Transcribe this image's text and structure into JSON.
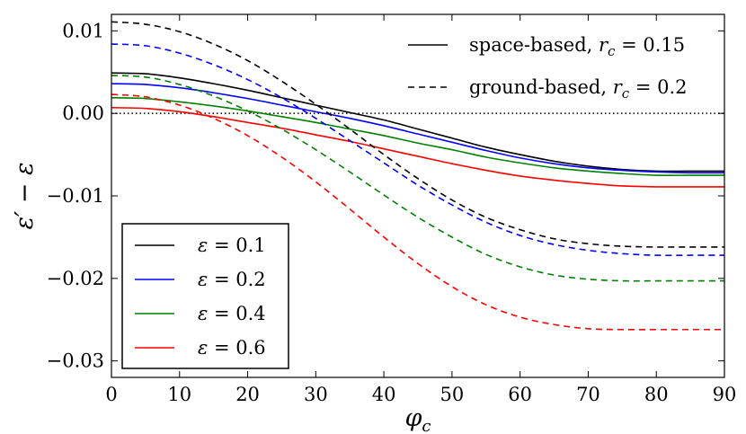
{
  "chart_data": {
    "type": "line",
    "title": "",
    "xlabel": "φ_c",
    "ylabel": "ε′ − ε",
    "xlim": [
      0,
      90
    ],
    "ylim": [
      -0.032,
      0.012
    ],
    "xticks": [
      0,
      10,
      20,
      30,
      40,
      50,
      60,
      70,
      80,
      90
    ],
    "xtick_labels": [
      "0",
      "10",
      "20",
      "30",
      "40",
      "50",
      "60",
      "70",
      "80",
      "90"
    ],
    "yticks": [
      0.01,
      0.0,
      -0.01,
      -0.02,
      -0.03
    ],
    "ytick_labels": [
      "0.01",
      "0.00",
      "−0.01",
      "−0.02",
      "−0.03"
    ],
    "reference_line": {
      "y": 0.0,
      "style": "dotted",
      "color": "#000000"
    },
    "x": [
      0,
      5,
      10,
      15,
      20,
      25,
      30,
      35,
      40,
      45,
      50,
      55,
      60,
      65,
      70,
      75,
      80,
      85,
      90
    ],
    "series": [
      {
        "name": "ε = 0.1",
        "epsilon": "0.1",
        "style": "solid",
        "color": "#000000",
        "values": [
          0.0049,
          0.0048,
          0.0043,
          0.0036,
          0.0028,
          0.0019,
          0.001,
          0.0001,
          -0.0008,
          -0.0019,
          -0.003,
          -0.0041,
          -0.005,
          -0.0058,
          -0.0064,
          -0.0068,
          -0.007,
          -0.007,
          -0.007
        ]
      },
      {
        "name": "ε = 0.2",
        "epsilon": "0.2",
        "style": "solid",
        "color": "#0000ff",
        "values": [
          0.0036,
          0.0035,
          0.0031,
          0.0025,
          0.0018,
          0.001,
          0.0002,
          -0.0006,
          -0.0015,
          -0.0025,
          -0.0035,
          -0.0045,
          -0.0054,
          -0.0061,
          -0.0066,
          -0.0069,
          -0.0071,
          -0.0072,
          -0.0072
        ]
      },
      {
        "name": "ε = 0.4",
        "epsilon": "0.4",
        "style": "solid",
        "color": "#008000",
        "values": [
          0.0019,
          0.0018,
          0.0014,
          0.0009,
          0.0003,
          -0.0004,
          -0.0011,
          -0.0019,
          -0.0027,
          -0.0036,
          -0.0044,
          -0.0053,
          -0.006,
          -0.0066,
          -0.007,
          -0.0073,
          -0.0075,
          -0.0075,
          -0.0075
        ]
      },
      {
        "name": "ε = 0.6",
        "epsilon": "0.6",
        "style": "solid",
        "color": "#ff0000",
        "values": [
          0.0007,
          0.0006,
          0.0002,
          -0.0004,
          -0.0011,
          -0.0018,
          -0.0026,
          -0.0034,
          -0.0043,
          -0.0052,
          -0.0061,
          -0.0069,
          -0.0076,
          -0.0081,
          -0.0085,
          -0.0088,
          -0.0089,
          -0.0089,
          -0.0089
        ]
      },
      {
        "name": "ε = 0.1 (ground)",
        "epsilon": "0.1",
        "style": "dashed",
        "color": "#000000",
        "values": [
          0.0111,
          0.0108,
          0.0099,
          0.0084,
          0.0064,
          0.0039,
          0.0011,
          -0.0019,
          -0.005,
          -0.0079,
          -0.0105,
          -0.0126,
          -0.0141,
          -0.0152,
          -0.0158,
          -0.0161,
          -0.0162,
          -0.0162,
          -0.0162
        ]
      },
      {
        "name": "ε = 0.2 (ground)",
        "epsilon": "0.2",
        "style": "dashed",
        "color": "#0000ff",
        "values": [
          0.0084,
          0.0082,
          0.0073,
          0.0059,
          0.0041,
          0.0019,
          -0.0006,
          -0.0033,
          -0.006,
          -0.0087,
          -0.0111,
          -0.0132,
          -0.0148,
          -0.0159,
          -0.0166,
          -0.017,
          -0.0172,
          -0.0172,
          -0.0172
        ]
      },
      {
        "name": "ε = 0.4 (ground)",
        "epsilon": "0.4",
        "style": "dashed",
        "color": "#008000",
        "values": [
          0.0046,
          0.0044,
          0.0035,
          0.0021,
          0.0003,
          -0.0019,
          -0.0044,
          -0.0071,
          -0.0099,
          -0.0126,
          -0.015,
          -0.0171,
          -0.0186,
          -0.0196,
          -0.0201,
          -0.0203,
          -0.0203,
          -0.0203,
          -0.0203
        ]
      },
      {
        "name": "ε = 0.6 (ground)",
        "epsilon": "0.6",
        "style": "dashed",
        "color": "#ff0000",
        "values": [
          0.0023,
          0.002,
          0.001,
          -0.0006,
          -0.0027,
          -0.0053,
          -0.0083,
          -0.0116,
          -0.015,
          -0.0182,
          -0.021,
          -0.0232,
          -0.0247,
          -0.0256,
          -0.0261,
          -0.0262,
          -0.0262,
          -0.0262,
          -0.0262
        ]
      }
    ],
    "style_legend": {
      "position": "top-right",
      "entries": [
        {
          "style": "solid",
          "label": "space-based, ",
          "math_var": "r",
          "math_sub": "c",
          "math_rest": " = 0.15"
        },
        {
          "style": "dashed",
          "label": "ground-based, ",
          "math_var": "r",
          "math_sub": "c",
          "math_rest": " = 0.2"
        }
      ]
    },
    "color_legend": {
      "position": "bottom-left",
      "entries": [
        {
          "color": "#000000",
          "symbol": "ε",
          "rest": " = 0.1"
        },
        {
          "color": "#0000ff",
          "symbol": "ε",
          "rest": " = 0.2"
        },
        {
          "color": "#008000",
          "symbol": "ε",
          "rest": " = 0.4"
        },
        {
          "color": "#ff0000",
          "symbol": "ε",
          "rest": " = 0.6"
        }
      ]
    }
  }
}
